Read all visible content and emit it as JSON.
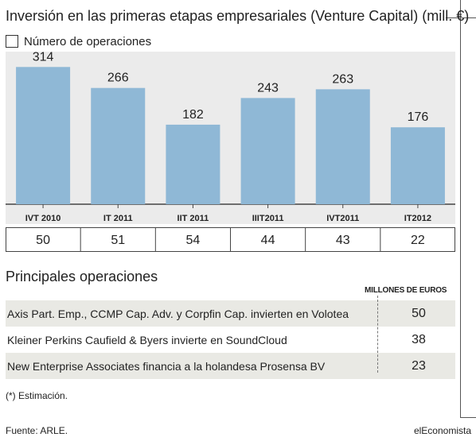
{
  "header": {
    "title": "Inversión en las primeras etapas empresariales (Venture Capital) (mill. €)",
    "legend_label": "Número de operaciones"
  },
  "chart_data": {
    "type": "bar",
    "title": "Inversión en las primeras etapas empresariales (Venture Capital) (mill. €)",
    "categories": [
      "IVT 2010",
      "IT 2011",
      "IIT 2011",
      "IIIT2011",
      "IVT2011",
      "IT2012"
    ],
    "values": [
      314,
      266,
      182,
      243,
      263,
      176
    ],
    "operations_label": "Número de operaciones",
    "operations": [
      "50",
      "51",
      "54",
      "44",
      "43",
      "22"
    ],
    "ylim": [
      0,
      340
    ],
    "grid": false,
    "bar_color": "#8fb8d6"
  },
  "operations_section": {
    "title": "Principales operaciones",
    "column_header": "MILLONES DE EUROS",
    "rows": [
      {
        "description": "Axis Part. Emp., CCMP Cap. Adv. y Corpfin Cap. invierten en Volotea",
        "value": "50"
      },
      {
        "description": "Kleiner Perkins Caufield & Byers invierte en SoundCloud",
        "value": "38"
      },
      {
        "description": "New Enterprise Associates financia a la holandesa Prosensa BV",
        "value": "23"
      }
    ]
  },
  "footer": {
    "note": "(*) Estimación.",
    "source": "Fuente: ARLE.",
    "brand": "elEconomista"
  }
}
